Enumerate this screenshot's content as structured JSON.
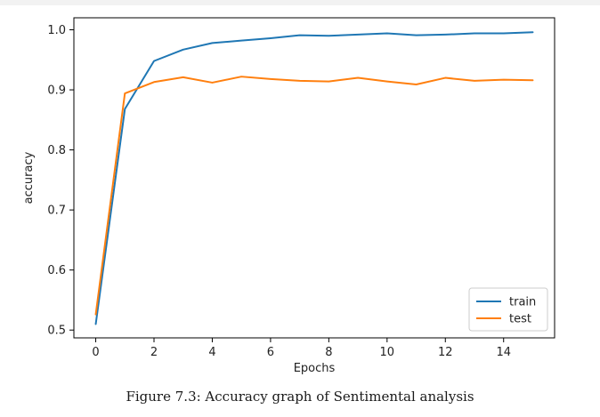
{
  "caption": "Figure 7.3: Accuracy graph of Sentimental analysis",
  "chart_data": {
    "type": "line",
    "title": "",
    "xlabel": "Epochs",
    "ylabel": "accuracy",
    "x": [
      0,
      1,
      2,
      3,
      4,
      5,
      6,
      7,
      8,
      9,
      10,
      11,
      12,
      13,
      14,
      15
    ],
    "xlim": [
      -0.75,
      15.75
    ],
    "ylim": [
      0.487,
      1.02
    ],
    "xticks": [
      0,
      2,
      4,
      6,
      8,
      10,
      12,
      14
    ],
    "xtick_labels": [
      "0",
      "2",
      "4",
      "6",
      "8",
      "10",
      "12",
      "14"
    ],
    "yticks": [
      0.5,
      0.6,
      0.7,
      0.8,
      0.9,
      1.0
    ],
    "ytick_labels": [
      "0.5",
      "0.6",
      "0.7",
      "0.8",
      "0.9",
      "1.0"
    ],
    "grid": false,
    "legend_position": "lower-right",
    "series": [
      {
        "name": "train",
        "color": "#1f77b4",
        "values": [
          0.51,
          0.868,
          0.948,
          0.967,
          0.978,
          0.982,
          0.986,
          0.991,
          0.99,
          0.992,
          0.994,
          0.991,
          0.992,
          0.994,
          0.994,
          0.996
        ]
      },
      {
        "name": "test",
        "color": "#ff7f0e",
        "values": [
          0.526,
          0.894,
          0.913,
          0.921,
          0.912,
          0.922,
          0.918,
          0.915,
          0.914,
          0.92,
          0.914,
          0.909,
          0.92,
          0.915,
          0.917,
          0.916
        ]
      }
    ]
  }
}
